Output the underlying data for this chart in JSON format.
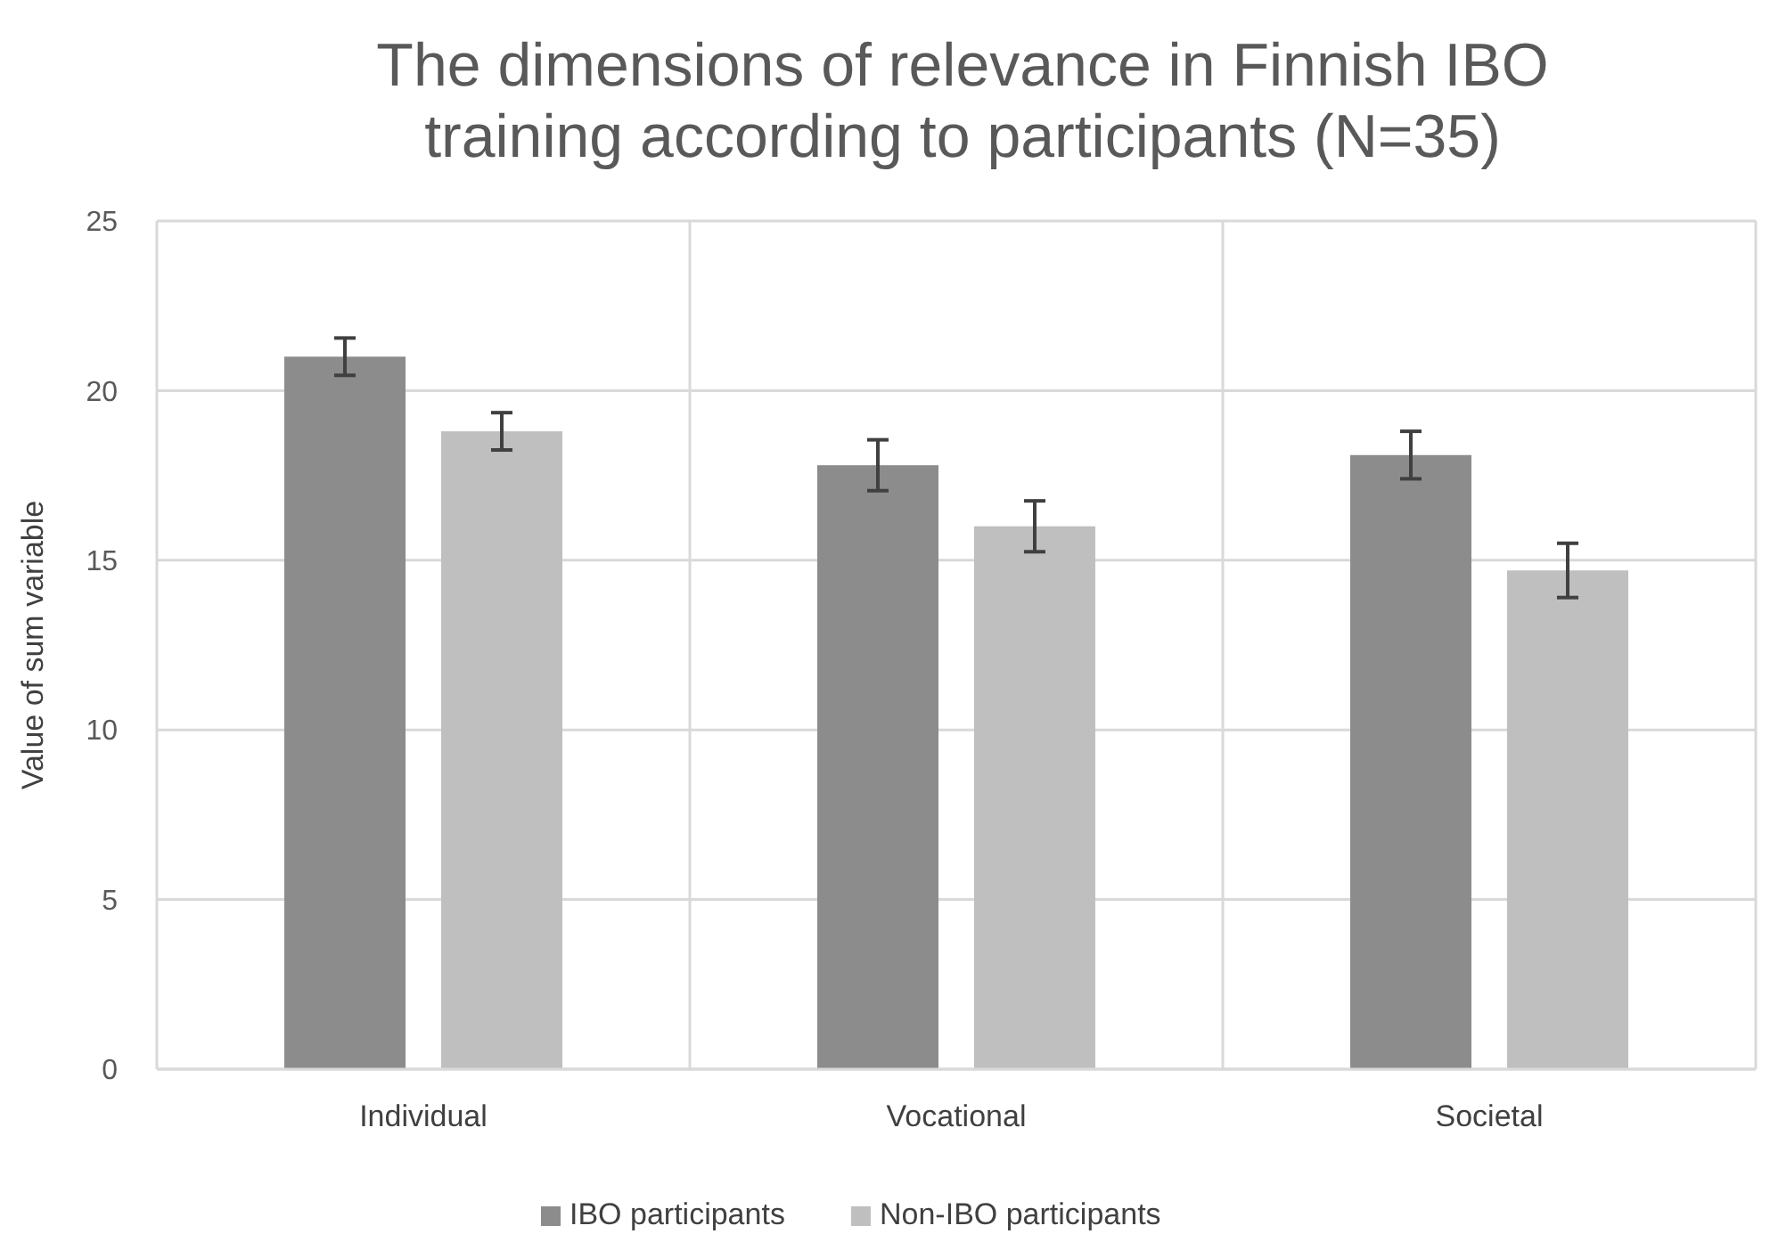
{
  "chart_data": {
    "type": "bar",
    "title": "The dimensions of relevance in Finnish IBO training according to participants (N=35)",
    "ylabel": "Value of sum variable",
    "categories": [
      "Individual",
      "Vocational",
      "Societal"
    ],
    "series": [
      {
        "name": "IBO participants",
        "color": "#8c8c8c",
        "values": [
          21.0,
          17.8,
          18.1
        ],
        "errors": [
          0.55,
          0.75,
          0.7
        ]
      },
      {
        "name": "Non-IBO participants",
        "color": "#bfbfbf",
        "values": [
          18.8,
          16.0,
          14.7
        ],
        "errors": [
          0.55,
          0.75,
          0.8
        ]
      }
    ],
    "ylim": [
      0,
      25
    ],
    "yticks": [
      0,
      5,
      10,
      15,
      20,
      25
    ],
    "grid": true,
    "legend": "bottom"
  }
}
